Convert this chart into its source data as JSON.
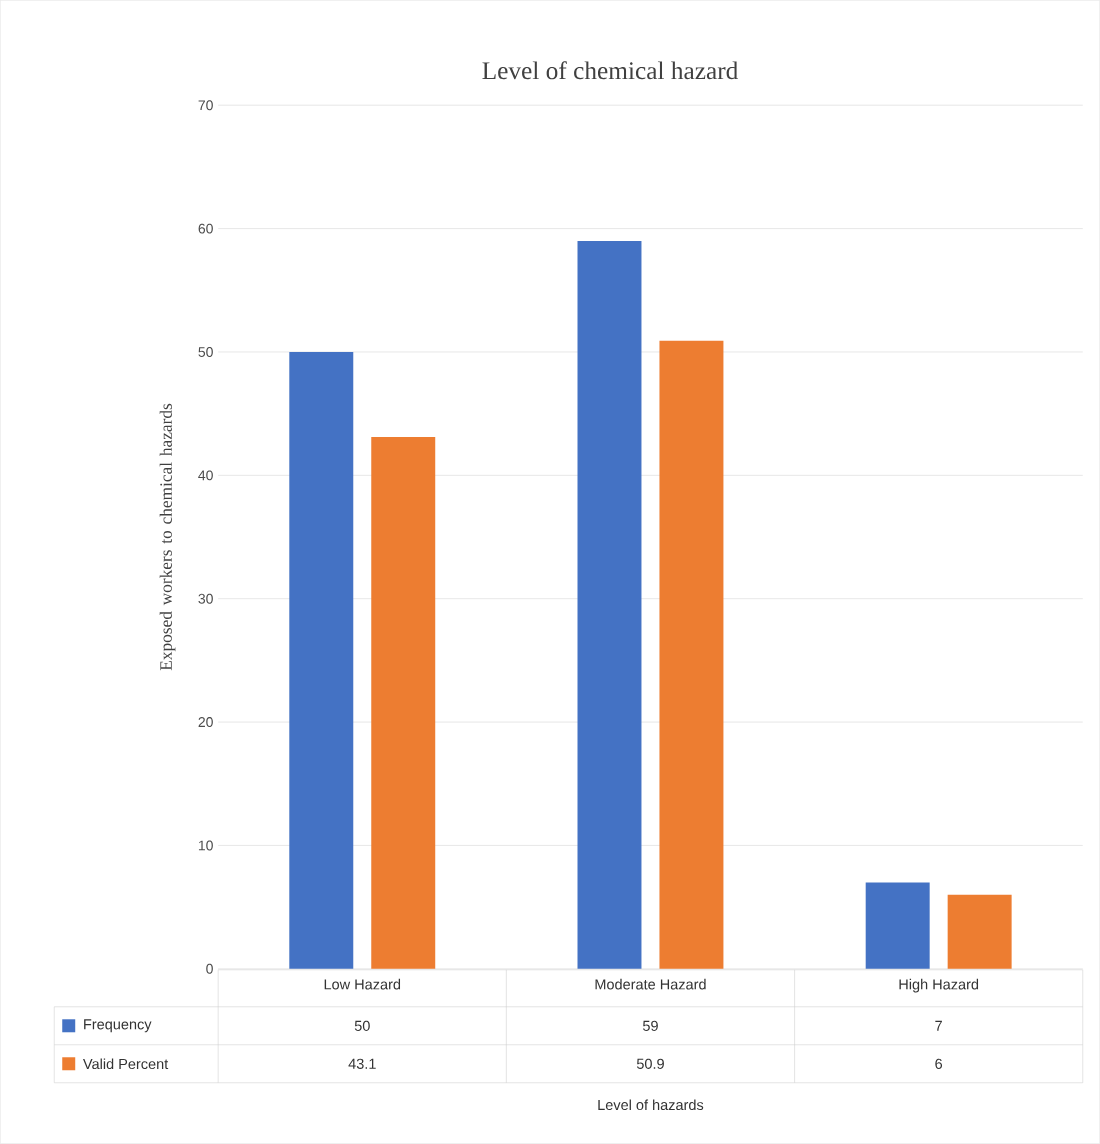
{
  "chart_data": {
    "type": "bar",
    "title": "Level of chemical hazard",
    "annotations": [
      "Level of hazards"
    ],
    "ylabel": "Exposed workers to chemical hazards",
    "categories": [
      "Low Hazard",
      "Moderate Hazard",
      "High Hazard"
    ],
    "series": [
      {
        "name": "Frequency",
        "color": "#4472c4",
        "values": [
          50,
          59,
          7
        ]
      },
      {
        "name": "Valid Percent",
        "color": "#ed7d31",
        "values": [
          43.1,
          50.9,
          6
        ]
      }
    ],
    "ylim": [
      0,
      70
    ],
    "yticks": [
      0,
      10,
      20,
      30,
      40,
      50,
      60,
      70
    ],
    "grid": "y",
    "legend": "bottom",
    "data_labels": true
  }
}
